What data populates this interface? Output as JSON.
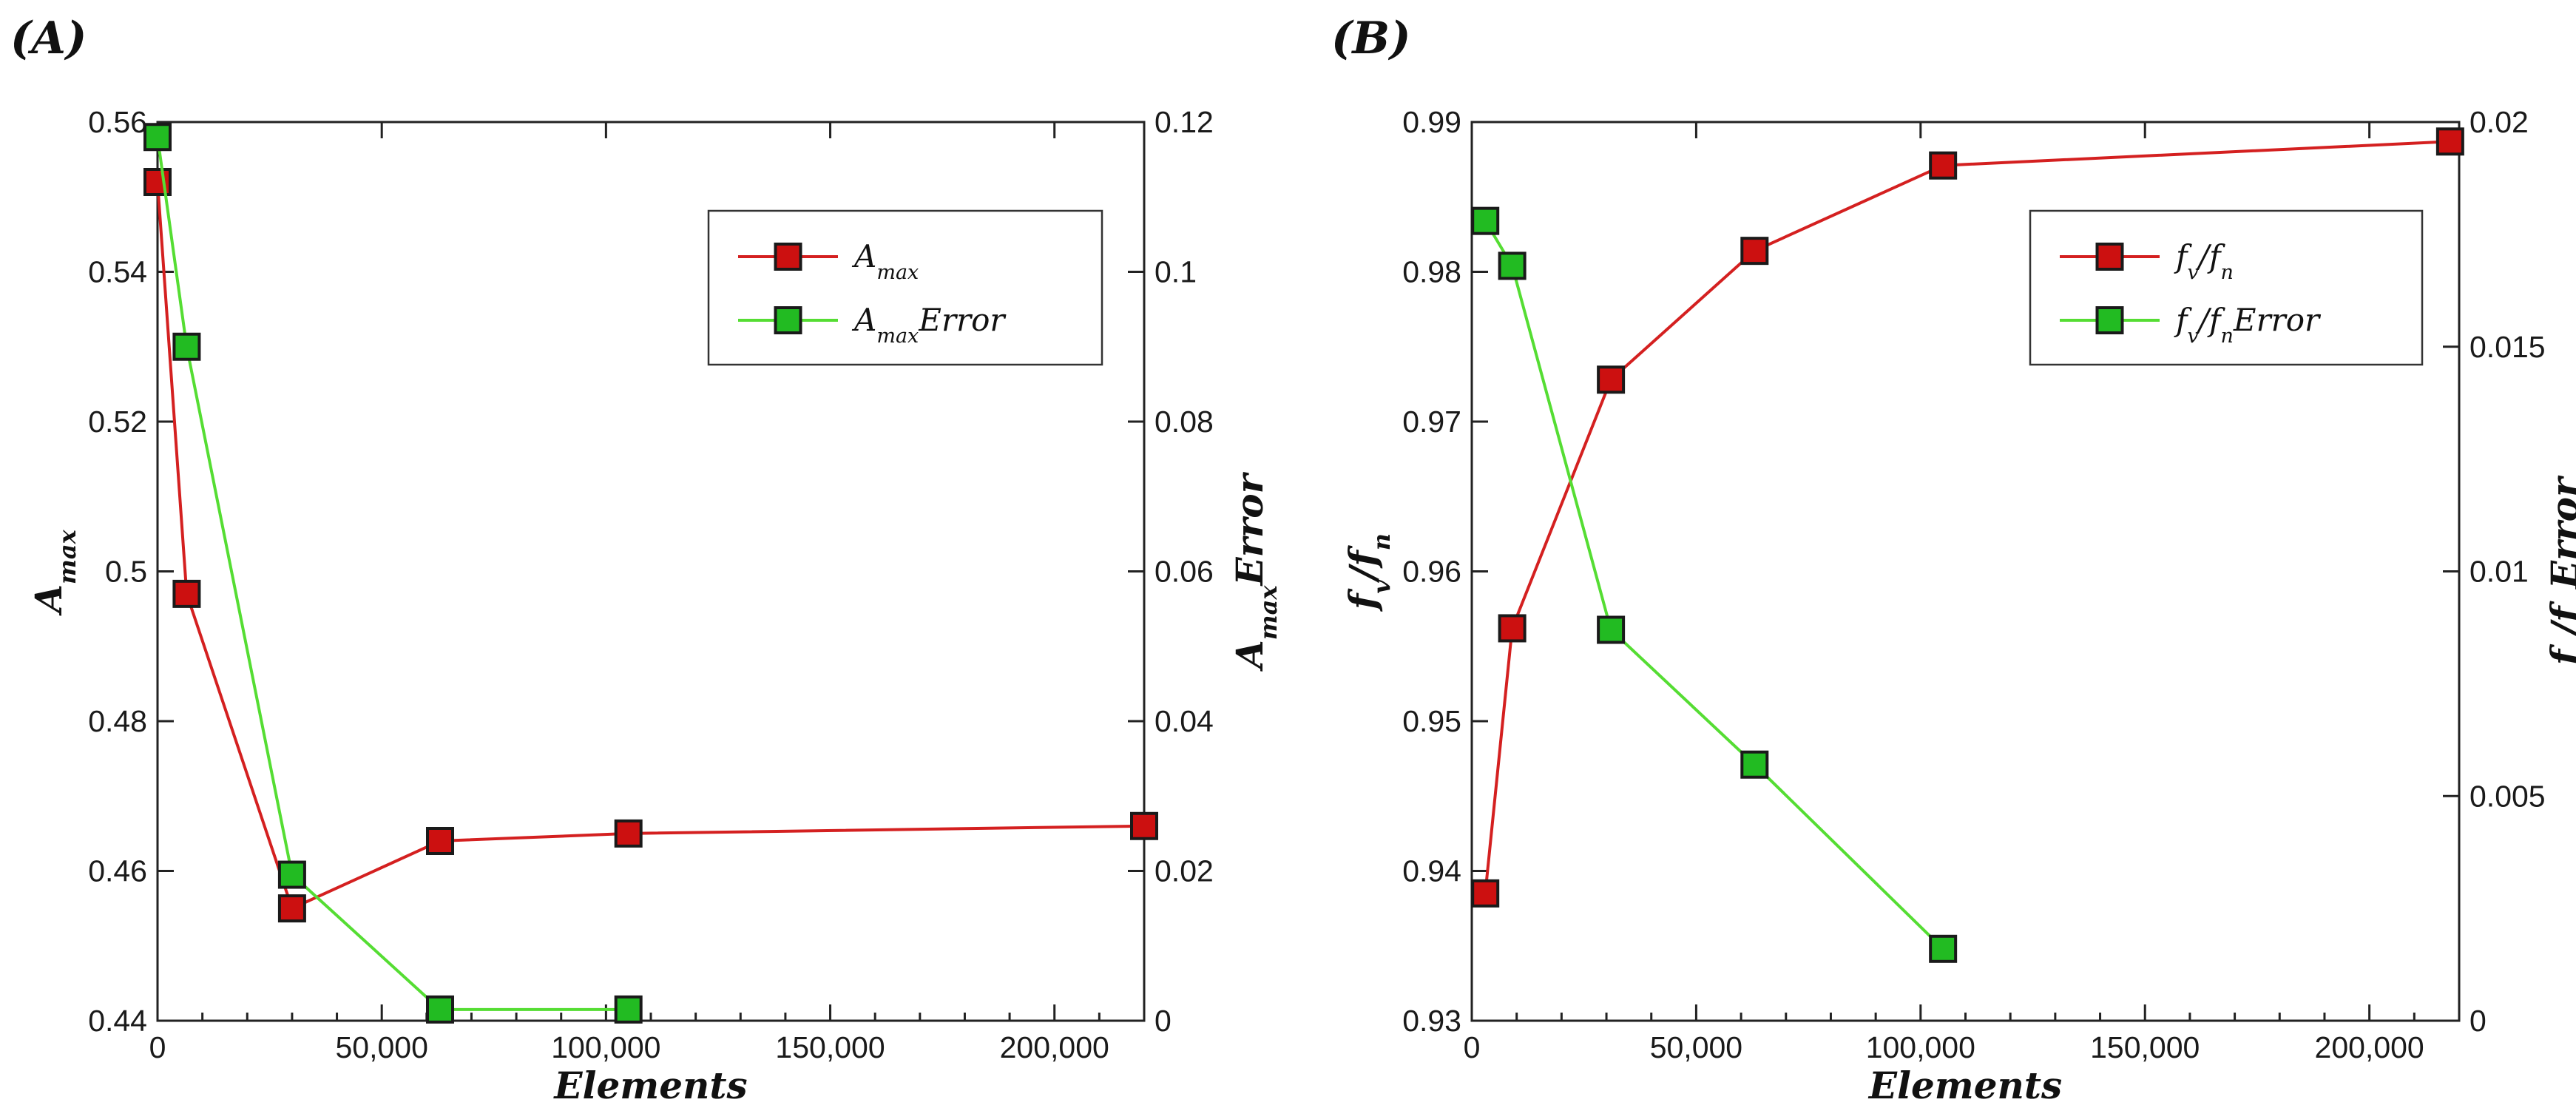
{
  "chart_data": [
    {
      "panel": "(A)",
      "type": "line",
      "xlabel": "Elements",
      "ylabel_left": "Amax",
      "ylabel_left_parts": {
        "base": "A",
        "sub": "max",
        "suffix": ""
      },
      "ylabel_right": "AmaxError",
      "ylabel_right_parts": {
        "base": "A",
        "sub": "max",
        "suffix": "Error"
      },
      "xlim": [
        0,
        220000
      ],
      "xticks": [
        0,
        50000,
        100000,
        150000,
        200000
      ],
      "xtick_labels": [
        "0",
        "50,000",
        "100,000",
        "150,000",
        "200,000"
      ],
      "ylim_left": [
        0.44,
        0.56
      ],
      "yticks_left": [
        0.44,
        0.46,
        0.48,
        0.5,
        0.52,
        0.54,
        0.56
      ],
      "ytick_labels_left": [
        "0.44",
        "0.46",
        "0.48",
        "0.5",
        "0.52",
        "0.54",
        "0.56"
      ],
      "ylim_right": [
        0,
        0.12
      ],
      "yticks_right": [
        0,
        0.02,
        0.04,
        0.06,
        0.08,
        0.1,
        0.12
      ],
      "ytick_labels_right": [
        "0",
        "0.02",
        "0.04",
        "0.06",
        "0.08",
        "0.1",
        "0.12"
      ],
      "legend_position": "top-right",
      "series": [
        {
          "name": "Amax",
          "label_parts": {
            "base": "A",
            "sub": "max",
            "suffix": ""
          },
          "axis": "left",
          "color": "#d42020",
          "marker_fill": "#cc1010",
          "x": [
            0,
            6500,
            30000,
            63000,
            105000,
            220000
          ],
          "y": [
            0.552,
            0.497,
            0.455,
            0.464,
            0.465,
            0.466
          ]
        },
        {
          "name": "AmaxError",
          "label_parts": {
            "base": "A",
            "sub": "max",
            "suffix": "Error"
          },
          "axis": "right",
          "color": "#55dd33",
          "marker_fill": "#22bb22",
          "x": [
            0,
            6500,
            30000,
            63000,
            105000
          ],
          "y": [
            0.118,
            0.09,
            0.0195,
            0.0015,
            0.0015
          ]
        }
      ]
    },
    {
      "panel": "(B)",
      "type": "line",
      "xlabel": "Elements",
      "ylabel_left": "fv/fn",
      "ylabel_left_parts": {
        "base": "f",
        "sub": "v",
        "slash": "/",
        "base2": "f",
        "sub2": "n",
        "suffix": ""
      },
      "ylabel_right": "fv/fnError",
      "ylabel_right_parts": {
        "base": "f",
        "sub": "v",
        "slash": "/",
        "base2": "f",
        "sub2": "n",
        "suffix": "Error"
      },
      "xlim": [
        0,
        220000
      ],
      "xticks": [
        0,
        50000,
        100000,
        150000,
        200000
      ],
      "xtick_labels": [
        "0",
        "50,000",
        "100,000",
        "150,000",
        "200,000"
      ],
      "ylim_left": [
        0.93,
        0.99
      ],
      "yticks_left": [
        0.93,
        0.94,
        0.95,
        0.96,
        0.97,
        0.98,
        0.99
      ],
      "ytick_labels_left": [
        "0.93",
        "0.94",
        "0.95",
        "0.96",
        "0.97",
        "0.98",
        "0.99"
      ],
      "ylim_right": [
        0,
        0.02
      ],
      "yticks_right": [
        0,
        0.005,
        0.01,
        0.015,
        0.02
      ],
      "ytick_labels_right": [
        "0",
        "0.005",
        "0.01",
        "0.015",
        "0.02"
      ],
      "legend_position": "top-right",
      "series": [
        {
          "name": "fv/fn",
          "label_parts": {
            "base": "f",
            "sub": "v",
            "slash": "/",
            "base2": "f",
            "sub2": "n",
            "suffix": ""
          },
          "axis": "left",
          "color": "#d42020",
          "marker_fill": "#cc1010",
          "x": [
            3000,
            9000,
            31000,
            63000,
            105000,
            218000
          ],
          "y": [
            0.9385,
            0.9562,
            0.9728,
            0.9814,
            0.9871,
            0.9887
          ]
        },
        {
          "name": "fv/fnError",
          "label_parts": {
            "base": "f",
            "sub": "v",
            "slash": "/",
            "base2": "f",
            "sub2": "n",
            "suffix": "Error"
          },
          "axis": "right",
          "color": "#55dd33",
          "marker_fill": "#22bb22",
          "x": [
            3000,
            9000,
            31000,
            63000,
            105000
          ],
          "y": [
            0.0178,
            0.0168,
            0.0087,
            0.0057,
            0.0016
          ]
        }
      ]
    }
  ]
}
